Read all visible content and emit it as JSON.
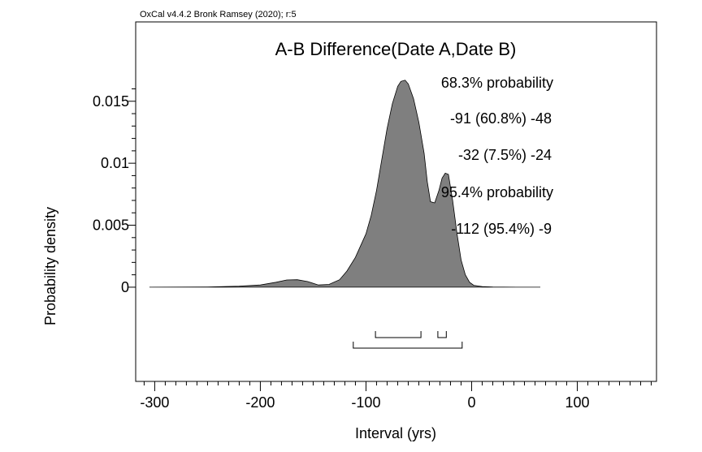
{
  "credit": "OxCal v4.4.2 Bronk Ramsey (2020); r:5",
  "chart_data": {
    "type": "area",
    "title": "A-B Difference(Date A,Date B)",
    "xlabel": "Interval (yrs)",
    "ylabel": "Probability density",
    "xlim": [
      -318,
      175
    ],
    "ylim": [
      -0.0076,
      0.0214
    ],
    "x_ticks": [
      -300,
      -200,
      -100,
      0,
      100
    ],
    "x_tick_labels": [
      "-300",
      "-200",
      "-100",
      "0",
      "100"
    ],
    "y_ticks": [
      0,
      0.005,
      0.01,
      0.015
    ],
    "y_tick_labels": [
      "0",
      "0.005",
      "0.01",
      "0.015"
    ],
    "colors": {
      "fill": "#7f7f7f",
      "outline": "#000000"
    },
    "annotations": [
      "68.3% probability",
      "-91 (60.8%) -48",
      "-32 (7.5%) -24",
      "95.4% probability",
      "-112 (95.4%) -9"
    ],
    "density": {
      "x": [
        -305,
        -250,
        -220,
        -200,
        -185,
        -175,
        -165,
        -155,
        -145,
        -135,
        -125,
        -118,
        -110,
        -100,
        -95,
        -90,
        -85,
        -80,
        -75,
        -70,
        -67,
        -63,
        -60,
        -55,
        -50,
        -45,
        -42,
        -39,
        -35,
        -31,
        -28,
        -25,
        -22,
        -18,
        -14,
        -10,
        -6,
        -2,
        2,
        10,
        20,
        30,
        45,
        65
      ],
      "y": [
        0,
        2e-05,
        8e-05,
        0.00018,
        0.0004,
        0.00058,
        0.0006,
        0.00045,
        0.00018,
        0.00022,
        0.0006,
        0.0013,
        0.0024,
        0.0043,
        0.0058,
        0.0078,
        0.0103,
        0.0128,
        0.0148,
        0.0162,
        0.0166,
        0.0167,
        0.0164,
        0.0152,
        0.0133,
        0.0108,
        0.0085,
        0.0069,
        0.0068,
        0.0078,
        0.0088,
        0.0092,
        0.0091,
        0.007,
        0.0044,
        0.0022,
        0.001,
        0.0004,
        0.00015,
        5e-05,
        2e-05,
        1e-05,
        0,
        0
      ]
    },
    "ranges_68": [
      [
        -91,
        -48
      ],
      [
        -32,
        -24
      ]
    ],
    "ranges_95": [
      [
        -112,
        -9
      ]
    ]
  }
}
